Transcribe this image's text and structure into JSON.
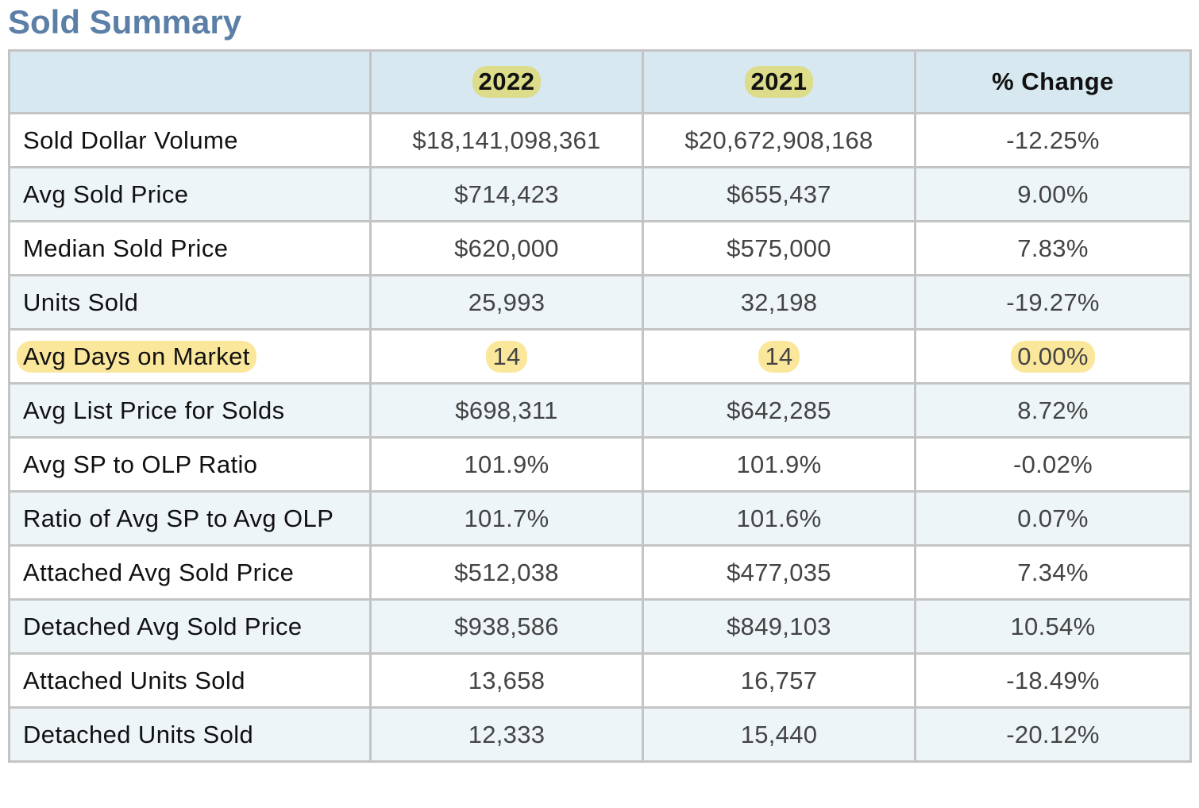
{
  "title": "Sold Summary",
  "table": {
    "headers": [
      "",
      "2022",
      "2021",
      "% Change"
    ],
    "rows": [
      {
        "label": "Sold Dollar Volume",
        "y2022": "$18,141,098,361",
        "y2021": "$20,672,908,168",
        "change": "-12.25%"
      },
      {
        "label": "Avg Sold Price",
        "y2022": "$714,423",
        "y2021": "$655,437",
        "change": "9.00%"
      },
      {
        "label": "Median Sold Price",
        "y2022": "$620,000",
        "y2021": "$575,000",
        "change": "7.83%"
      },
      {
        "label": "Units Sold",
        "y2022": "25,993",
        "y2021": "32,198",
        "change": "-19.27%"
      },
      {
        "label": "Avg Days on Market",
        "y2022": "14",
        "y2021": "14",
        "change": "0.00%"
      },
      {
        "label": "Avg List Price for Solds",
        "y2022": "$698,311",
        "y2021": "$642,285",
        "change": "8.72%"
      },
      {
        "label": "Avg SP to OLP Ratio",
        "y2022": "101.9%",
        "y2021": "101.9%",
        "change": "-0.02%"
      },
      {
        "label": "Ratio of Avg SP to Avg OLP",
        "y2022": "101.7%",
        "y2021": "101.6%",
        "change": "0.07%"
      },
      {
        "label": "Attached Avg Sold Price",
        "y2022": "$512,038",
        "y2021": "$477,035",
        "change": "7.34%"
      },
      {
        "label": "Detached Avg Sold Price",
        "y2022": "$938,586",
        "y2021": "$849,103",
        "change": "10.54%"
      },
      {
        "label": "Attached Units Sold",
        "y2022": "13,658",
        "y2021": "16,757",
        "change": "-18.49%"
      },
      {
        "label": "Detached Units Sold",
        "y2022": "12,333",
        "y2021": "15,440",
        "change": "-20.12%"
      }
    ]
  },
  "highlights": {
    "header_color": "#dcdc8a",
    "row_color": "#fae79c",
    "highlighted_row": "Avg Days on Market"
  },
  "colors": {
    "title": "#5b7fa6",
    "header_bg": "#d7e8f1",
    "alt_row_bg": "#eef5f9",
    "border": "#c4c4c4"
  }
}
